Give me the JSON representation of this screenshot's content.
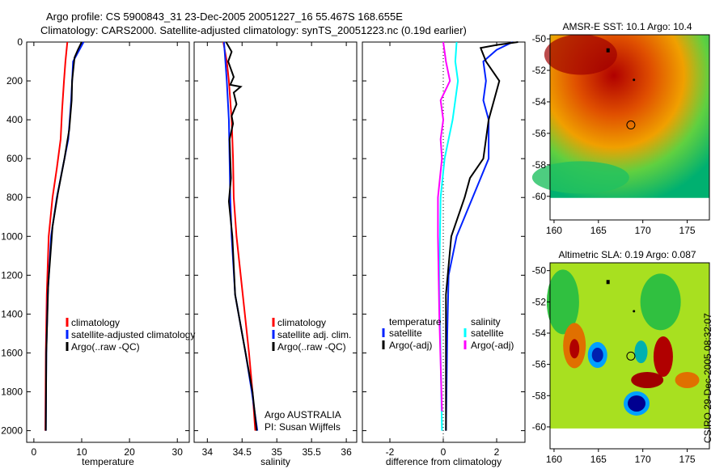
{
  "title_line1": "Argo profile: CS 5900843_31 23-Dec-2005 20051227_16 55.467S 168.655E",
  "title_line2": "Climatology: CARS2000. Satellite-adjusted climatology: synTS_20051223.nc (0.19d earlier)",
  "side_stamp": "CSIRO 29-Dec-2005 08:32:07",
  "colors": {
    "red": "#ff0000",
    "blue": "#0022ff",
    "black": "#000000",
    "cyan": "#00ffff",
    "magenta": "#ff00ff"
  },
  "chart_data": [
    {
      "type": "line",
      "xlabel": "temperature",
      "ylabel": "",
      "xlim": [
        -1.5,
        32.5
      ],
      "ylim": [
        0,
        2060
      ],
      "yreversed": true,
      "xticks": [
        "0",
        "10",
        "20",
        "30"
      ],
      "xtickvals": [
        0,
        10,
        20,
        30
      ],
      "yticks": [
        "0",
        "200",
        "400",
        "600",
        "800",
        "1000",
        "1200",
        "1400",
        "1600",
        "1800",
        "2000"
      ],
      "legend": [
        "climatology",
        "satellite-adjusted climatology",
        "Argo(..raw -QC)"
      ],
      "series": [
        {
          "name": "climatology",
          "color": "red",
          "points": [
            [
              7.0,
              0
            ],
            [
              6.6,
              100
            ],
            [
              6.3,
              200
            ],
            [
              5.9,
              350
            ],
            [
              5.6,
              500
            ],
            [
              4.8,
              650
            ],
            [
              3.9,
              800
            ],
            [
              3.1,
              1000
            ],
            [
              2.7,
              1300
            ],
            [
              2.5,
              1600
            ],
            [
              2.4,
              2000
            ]
          ]
        },
        {
          "name": "satellite-adjusted climatology",
          "color": "blue",
          "points": [
            [
              10.4,
              0
            ],
            [
              8.2,
              100
            ],
            [
              7.8,
              300
            ],
            [
              7.2,
              500
            ],
            [
              6.0,
              650
            ],
            [
              4.8,
              800
            ],
            [
              3.6,
              1000
            ],
            [
              2.9,
              1300
            ],
            [
              2.6,
              1600
            ],
            [
              2.5,
              2000
            ]
          ]
        },
        {
          "name": "Argo(..raw -QC)",
          "color": "black",
          "points": [
            [
              10.0,
              0
            ],
            [
              9.2,
              40
            ],
            [
              8.5,
              80
            ],
            [
              8.0,
              200
            ],
            [
              7.9,
              300
            ],
            [
              7.4,
              450
            ],
            [
              6.4,
              600
            ],
            [
              5.0,
              780
            ],
            [
              3.9,
              950
            ],
            [
              3.0,
              1250
            ],
            [
              2.6,
              1600
            ],
            [
              2.5,
              2000
            ]
          ]
        }
      ]
    },
    {
      "type": "line",
      "xlabel": "salinity",
      "xlim": [
        33.81,
        36.15
      ],
      "ylim": [
        0,
        2060
      ],
      "yreversed": true,
      "xticks": [
        "34",
        "34.5",
        "35",
        "35.5",
        "36"
      ],
      "xtickvals": [
        34,
        34.5,
        35,
        35.5,
        36
      ],
      "legend": [
        "climatology",
        "satellite adj. clim.",
        "Argo(..raw -QC)"
      ],
      "annotation": [
        "Argo AUSTRALIA",
        "PI: Susan Wijffels"
      ],
      "series": [
        {
          "name": "climatology",
          "color": "red",
          "points": [
            [
              34.23,
              0
            ],
            [
              34.28,
              100
            ],
            [
              34.31,
              200
            ],
            [
              34.35,
              400
            ],
            [
              34.37,
              600
            ],
            [
              34.38,
              800
            ],
            [
              34.42,
              1000
            ],
            [
              34.51,
              1300
            ],
            [
              34.6,
              1600
            ],
            [
              34.65,
              1800
            ],
            [
              34.69,
              2000
            ]
          ]
        },
        {
          "name": "satellite adj. clim.",
          "color": "blue",
          "points": [
            [
              34.24,
              0
            ],
            [
              34.28,
              200
            ],
            [
              34.31,
              400
            ],
            [
              34.33,
              800
            ],
            [
              34.35,
              1000
            ],
            [
              34.4,
              1300
            ],
            [
              34.55,
              1600
            ],
            [
              34.64,
              1800
            ],
            [
              34.72,
              2000
            ]
          ]
        },
        {
          "name": "Argo(..raw -QC)",
          "color": "black",
          "points": [
            [
              34.27,
              0
            ],
            [
              34.35,
              50
            ],
            [
              34.3,
              100
            ],
            [
              34.38,
              180
            ],
            [
              34.33,
              220
            ],
            [
              34.48,
              230
            ],
            [
              34.38,
              260
            ],
            [
              34.42,
              320
            ],
            [
              34.35,
              380
            ],
            [
              34.37,
              420
            ],
            [
              34.32,
              500
            ],
            [
              34.34,
              700
            ],
            [
              34.31,
              820
            ],
            [
              34.36,
              1000
            ],
            [
              34.4,
              1300
            ],
            [
              34.55,
              1600
            ],
            [
              34.65,
              1800
            ],
            [
              34.71,
              2000
            ]
          ]
        }
      ]
    },
    {
      "type": "line",
      "xlabel": "difference from climatology",
      "xlim": [
        -3.03,
        3.06
      ],
      "ylim": [
        0,
        2060
      ],
      "yreversed": true,
      "xticks": [
        "-2",
        "0",
        "2"
      ],
      "xtickvals": [
        -2,
        0,
        2
      ],
      "legend_headers": [
        "temperature",
        "salinity"
      ],
      "legend": [
        "satellite",
        "Argo(-adj)",
        "satellite",
        "Argo(-adj)"
      ],
      "series": [
        {
          "name": "temperature satellite",
          "color": "blue",
          "points": [
            [
              2.6,
              0
            ],
            [
              2.0,
              40
            ],
            [
              1.5,
              100
            ],
            [
              1.6,
              200
            ],
            [
              1.5,
              300
            ],
            [
              1.7,
              400
            ],
            [
              1.7,
              600
            ],
            [
              1.4,
              700
            ],
            [
              1.1,
              800
            ],
            [
              0.5,
              1000
            ],
            [
              0.2,
              1200
            ],
            [
              0.15,
              1500
            ],
            [
              0.1,
              2000
            ]
          ]
        },
        {
          "name": "temperature Argo(-adj)",
          "color": "black",
          "points": [
            [
              2.8,
              0
            ],
            [
              2.0,
              15
            ],
            [
              1.4,
              30
            ],
            [
              1.6,
              100
            ],
            [
              2.1,
              200
            ],
            [
              1.9,
              300
            ],
            [
              1.7,
              400
            ],
            [
              1.5,
              600
            ],
            [
              1.0,
              700
            ],
            [
              0.8,
              800
            ],
            [
              0.3,
              1000
            ],
            [
              0.1,
              1300
            ],
            [
              0.1,
              2000
            ]
          ]
        },
        {
          "name": "salinity satellite",
          "color": "cyan",
          "points": [
            [
              0.5,
              0
            ],
            [
              0.45,
              100
            ],
            [
              0.55,
              200
            ],
            [
              0.35,
              400
            ],
            [
              0.05,
              600
            ],
            [
              -0.1,
              800
            ],
            [
              -0.15,
              1200
            ],
            [
              -0.1,
              1600
            ],
            [
              -0.05,
              2000
            ]
          ]
        },
        {
          "name": "salinity Argo(-adj)",
          "color": "magenta",
          "points": [
            [
              0.0,
              0
            ],
            [
              0.1,
              100
            ],
            [
              0.25,
              200
            ],
            [
              -0.1,
              300
            ],
            [
              0.0,
              400
            ],
            [
              -0.1,
              500
            ],
            [
              -0.05,
              600
            ],
            [
              -0.2,
              800
            ],
            [
              -0.2,
              1000
            ],
            [
              -0.15,
              1400
            ],
            [
              -0.05,
              1900
            ]
          ]
        }
      ],
      "zero_line": 0
    },
    {
      "type": "heatmap",
      "title": "AMSR-E SST: 10.1 Argo: 10.4",
      "xlim": [
        159.55,
        177.5
      ],
      "ylim": [
        -61.5,
        -49.74
      ],
      "xticks": [
        "160",
        "165",
        "170",
        "175"
      ],
      "xtickvals": [
        160,
        165,
        170,
        175
      ],
      "yticks": [
        "-50",
        "-52",
        "-54",
        "-56",
        "-58",
        "-60"
      ],
      "ytickvals": [
        -50,
        -52,
        -54,
        -56,
        -58,
        -60
      ],
      "marker": [
        168.655,
        -55.467
      ]
    },
    {
      "type": "heatmap",
      "title": "Altimetric SLA: 0.19 Argo: 0.087",
      "xlim": [
        159.55,
        177.5
      ],
      "ylim": [
        -61.4,
        -49.5
      ],
      "xticks": [
        "160",
        "165",
        "170",
        "175"
      ],
      "xtickvals": [
        160,
        165,
        170,
        175
      ],
      "yticks": [
        "-50",
        "-52",
        "-54",
        "-56",
        "-58",
        "-60"
      ],
      "ytickvals": [
        -50,
        -52,
        -54,
        -56,
        -58,
        -60
      ],
      "marker": [
        168.655,
        -55.467
      ]
    }
  ]
}
